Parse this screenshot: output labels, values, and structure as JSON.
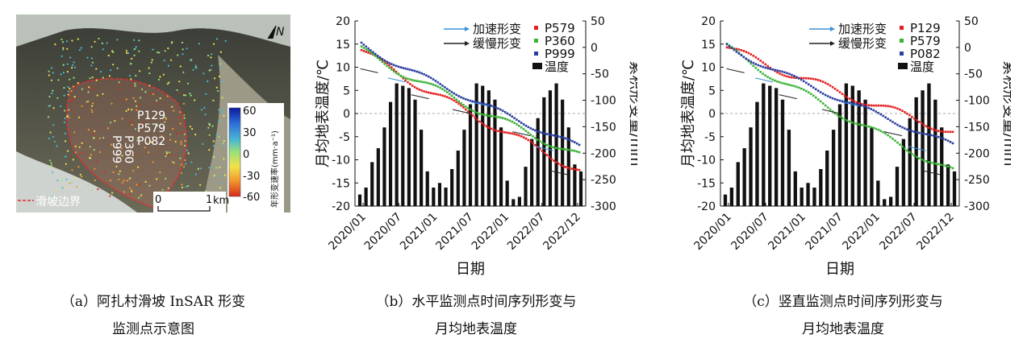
{
  "panel_a": {
    "point_labels": [
      "P129",
      "P579",
      "P082"
    ],
    "rotated_labels": [
      "P999",
      "P360"
    ],
    "north": "N",
    "colorbar": {
      "ticks": [
        "60",
        "30",
        "0",
        "-30",
        "-60"
      ],
      "title": "年形变速率(mm·a⁻¹)",
      "colors": [
        "#0b1a9e",
        "#2f6fd8",
        "#49b8d2",
        "#9be07a",
        "#f2e24a",
        "#f39a2e",
        "#d9281c"
      ]
    },
    "scale": {
      "zero": "0",
      "one": "1",
      "unit": "km"
    },
    "legend_boundary": "滑坡边界",
    "boundary_color": "#e03030"
  },
  "captions": {
    "a": [
      "（a）阿扎村滑坡 InSAR 形变",
      "监测点示意图"
    ],
    "b": [
      "（b）水平监测点时间序列形变与",
      "月均地表温度"
    ],
    "c": [
      "（c）竖直监测点时间序列形变与",
      "月均地表温度"
    ]
  },
  "chart_data": [
    {
      "type": "bar",
      "x_ticks": [
        "2020/01",
        "2020/07",
        "2021/01",
        "2021/07",
        "2022/01",
        "2022/07",
        "2022/12"
      ],
      "xlabel": "日期",
      "ylabel_left": "月均地表温度/℃",
      "ylabel_right": "累积形变量/mm",
      "ylim_left": [
        -20,
        20
      ],
      "ylim_right": [
        -300,
        50
      ],
      "yticks_left": [
        -20,
        -15,
        -10,
        -5,
        0,
        5,
        10,
        15,
        20
      ],
      "yticks_right": [
        -300,
        -250,
        -200,
        -150,
        -100,
        -50,
        0,
        50
      ],
      "zero_line": "dashed",
      "temperature": [
        -17.5,
        -16,
        -10.5,
        -7.5,
        -3,
        2.5,
        6.5,
        6,
        5.5,
        3,
        -3.5,
        -12.5,
        -16,
        -15,
        -16,
        -12,
        -8,
        -3.5,
        2,
        6.5,
        6,
        5,
        3,
        -3,
        -14.5,
        -18.5,
        -18,
        -11.5,
        -5.5,
        -1,
        3.5,
        5,
        6.5,
        3,
        -3,
        -11,
        -12.5
      ],
      "arrows": {
        "加速形变": "#3a8fd8",
        "缓慢形变": "#222222"
      },
      "legend": [
        "加速形变",
        "缓慢形变",
        "P579",
        "P360",
        "P999",
        "温度"
      ],
      "series": [
        {
          "name": "P579",
          "color": "#e32020",
          "start": -5,
          "end": -232
        },
        {
          "name": "P360",
          "color": "#39b334",
          "start": -5,
          "end": -205
        },
        {
          "name": "P999",
          "color": "#2a3f9f",
          "start": 5,
          "end": -188
        }
      ]
    },
    {
      "type": "bar",
      "x_ticks": [
        "2020/01",
        "2020/07",
        "2021/01",
        "2021/07",
        "2022/01",
        "2022/07",
        "2022/12"
      ],
      "xlabel": "日期",
      "ylabel_left": "月均地表温度/℃",
      "ylabel_right": "累积形变量/mm",
      "ylim_left": [
        -20,
        20
      ],
      "ylim_right": [
        -300,
        50
      ],
      "yticks_left": [
        -20,
        -15,
        -10,
        -5,
        0,
        5,
        10,
        15,
        20
      ],
      "yticks_right": [
        -300,
        -250,
        -200,
        -150,
        -100,
        -50,
        0,
        50
      ],
      "zero_line": "dashed",
      "temperature": [
        -17.5,
        -16,
        -10.5,
        -7.5,
        -3,
        2.5,
        6.5,
        6,
        5.5,
        3,
        -3.5,
        -12.5,
        -16,
        -15,
        -16,
        -12,
        -8,
        -3.5,
        2,
        6.5,
        6,
        5,
        3,
        -3,
        -14.5,
        -18.5,
        -18,
        -11.5,
        -5.5,
        -1,
        3.5,
        5,
        6.5,
        3,
        -3,
        -11,
        -12.5
      ],
      "arrows": {
        "加速形变": "#3a8fd8",
        "缓慢形变": "#222222"
      },
      "legend": [
        "加速形变",
        "缓慢形变",
        "P129",
        "P579",
        "P082",
        "温度"
      ],
      "series": [
        {
          "name": "P129",
          "color": "#e32020",
          "start": 0,
          "end": -160
        },
        {
          "name": "P579",
          "color": "#39b334",
          "start": 0,
          "end": -235
        },
        {
          "name": "P082",
          "color": "#2a3f9f",
          "start": 2,
          "end": -185
        }
      ]
    }
  ]
}
